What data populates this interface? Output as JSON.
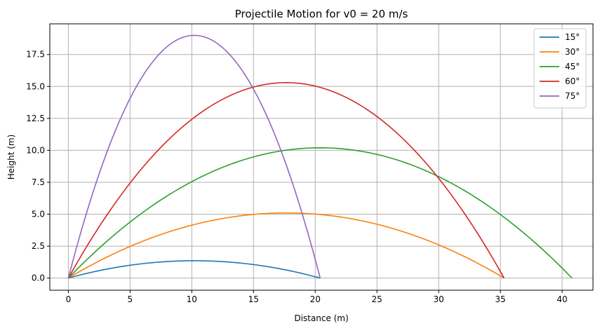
{
  "chart_data": {
    "type": "line",
    "title": "Projectile Motion for v0 = 20 m/s",
    "xlabel": "Distance (m)",
    "ylabel": "Height (m)",
    "xlim": [
      -1.5,
      42.5
    ],
    "ylim": [
      -0.95,
      19.9
    ],
    "xticks": [
      0,
      5,
      10,
      15,
      20,
      25,
      30,
      35,
      40
    ],
    "xtick_labels": [
      "0",
      "5",
      "10",
      "15",
      "20",
      "25",
      "30",
      "35",
      "40"
    ],
    "yticks": [
      0,
      2.5,
      5,
      7.5,
      10,
      12.5,
      15,
      17.5
    ],
    "ytick_labels": [
      "0.0",
      "2.5",
      "5.0",
      "7.5",
      "10.0",
      "12.5",
      "15.0",
      "17.5"
    ],
    "grid": true,
    "legend_position": "top-right",
    "series": [
      {
        "name": "15°",
        "color": "#1f77b4",
        "points": [
          [
            0,
            0
          ],
          [
            2.04,
            0.52
          ],
          [
            4.08,
            0.88
          ],
          [
            6.12,
            1.17
          ],
          [
            8.16,
            1.3
          ],
          [
            10.2,
            1.36
          ],
          [
            12.24,
            1.3
          ],
          [
            14.28,
            1.15
          ],
          [
            16.32,
            0.88
          ],
          [
            18.36,
            0.52
          ],
          [
            20.4,
            0
          ]
        ]
      },
      {
        "name": "30°",
        "color": "#ff7f0e",
        "points": [
          [
            0,
            0
          ],
          [
            3.53,
            1.84
          ],
          [
            7.06,
            3.27
          ],
          [
            10.59,
            4.29
          ],
          [
            14.12,
            4.9
          ],
          [
            17.65,
            5.1
          ],
          [
            21.18,
            4.9
          ],
          [
            24.71,
            4.29
          ],
          [
            28.24,
            3.27
          ],
          [
            31.77,
            1.84
          ],
          [
            35.3,
            0
          ]
        ]
      },
      {
        "name": "45°",
        "color": "#2ca02c",
        "points": [
          [
            0,
            0
          ],
          [
            4.08,
            3.67
          ],
          [
            8.16,
            6.53
          ],
          [
            12.24,
            8.57
          ],
          [
            16.32,
            9.79
          ],
          [
            20.4,
            10.2
          ],
          [
            24.48,
            9.79
          ],
          [
            28.56,
            8.57
          ],
          [
            32.64,
            6.53
          ],
          [
            36.72,
            3.67
          ],
          [
            40.8,
            0
          ]
        ]
      },
      {
        "name": "60°",
        "color": "#d62728",
        "points": [
          [
            0,
            0
          ],
          [
            3.53,
            5.51
          ],
          [
            7.06,
            9.79
          ],
          [
            10.59,
            12.85
          ],
          [
            14.12,
            14.69
          ],
          [
            17.65,
            15.3
          ],
          [
            21.18,
            14.69
          ],
          [
            24.71,
            12.85
          ],
          [
            28.24,
            9.79
          ],
          [
            31.77,
            5.51
          ],
          [
            35.3,
            0
          ]
        ]
      },
      {
        "name": "75°",
        "color": "#9467bd",
        "points": [
          [
            0,
            0
          ],
          [
            2.04,
            6.84
          ],
          [
            4.08,
            12.16
          ],
          [
            6.12,
            15.96
          ],
          [
            8.16,
            18.24
          ],
          [
            10.2,
            19.0
          ],
          [
            12.24,
            18.24
          ],
          [
            14.28,
            15.96
          ],
          [
            16.32,
            12.16
          ],
          [
            18.36,
            6.84
          ],
          [
            20.4,
            0
          ]
        ]
      }
    ]
  }
}
